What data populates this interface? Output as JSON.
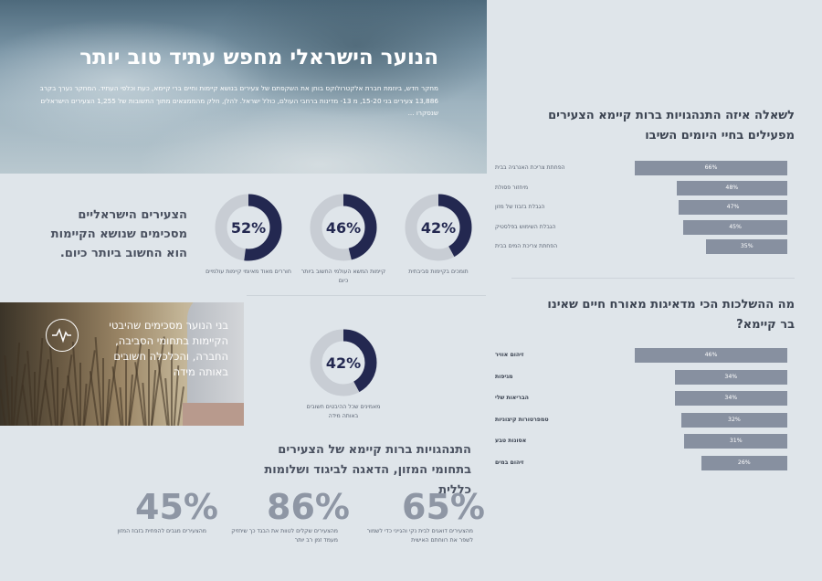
{
  "hero": {
    "title": "הנוער הישראלי מחפש עתיד טוב יותר",
    "body": "מחקר חדש, ביוזמת חברת אלקטרולוקס בוחן את השקפתם של צעירים בנושא קיימות וחיים ברי קיימא, כעת וכלפי העתיד. המחקר נערך בקרב 13,886 צעירים בני 15-20, מ 13- מדינות ברחבי העולם, כולל ישראל. להלן, חלק מהממצאים מתוך התשובות של 1,255 הצעירים הישראלים שנסקרו ..."
  },
  "habits": {
    "title": "לשאלה איזה התנהגויות ברות קיימא הצעירים מפעילים בחיי היומים השיבו",
    "bars": [
      {
        "label": "הפחתת צריכת האנרגיה בבית",
        "value": "66%",
        "pct": 66
      },
      {
        "label": "מיחזור פסולת",
        "value": "48%",
        "pct": 48
      },
      {
        "label": "הגבלת בזבוז של מזון",
        "value": "47%",
        "pct": 47
      },
      {
        "label": "הגבלת השימוש בפלסטיק",
        "value": "45%",
        "pct": 45
      },
      {
        "label": "הפחתת צריכת המים בבית",
        "value": "35%",
        "pct": 35
      }
    ]
  },
  "concerns": {
    "title": "מה ההשלכות הכי מדאיגות מאורח חיים שאינו בר קיימא?",
    "bars": [
      {
        "label": "זיהום אוויר",
        "value": "46%",
        "pct": 46
      },
      {
        "label": "מגיפות",
        "value": "34%",
        "pct": 34
      },
      {
        "label": "הבריאות שלי",
        "value": "34%",
        "pct": 34
      },
      {
        "label": "טמפרטורות קיצוניות",
        "value": "32%",
        "pct": 32
      },
      {
        "label": "אסונות טבע",
        "value": "31%",
        "pct": 31
      },
      {
        "label": "זיהום במים",
        "value": "26%",
        "pct": 26
      }
    ]
  },
  "agree": {
    "text": "הצעירים הישראליים מסכימים שנושא הקיימות הוא החשוב ביותר כיום.",
    "donuts": [
      {
        "value": "52%",
        "pct": 52,
        "caption": "חוררים מאוד מאיומי קיימות עולמיים"
      },
      {
        "value": "46%",
        "pct": 46,
        "caption": "קיימות המשא העולמי החשוב ביותר כיום"
      },
      {
        "value": "42%",
        "pct": 42,
        "caption": "תומכים בקיימות סביבתית"
      }
    ]
  },
  "photo": {
    "text": "בני הנוער מסכימים שהיבטי הקיימות בתחומי הסביבה, החברה, והכלכלה חשובים באותה מידה"
  },
  "balance": {
    "value": "42%",
    "pct": 42,
    "caption": "מאמינים שכל ההיבטים חשובים באותה מידה"
  },
  "food": {
    "title": "התנהגויות ברות קיימא של הצעירים בתחומי המזון, הדאגה לביגוד ושלומות כללית",
    "stats": [
      {
        "value": "45%",
        "caption": "מהצעירים מגבים להפחית בזבוז המזון"
      },
      {
        "value": "86%",
        "caption": "מהצעירים שקלים לטוות את הבגד כך שיחזיק מעמד זמן רב יותר"
      },
      {
        "value": "65%",
        "caption": "מהצעירים דואגים לבית נקי והגייני כדי לשמור לשפר את רווחתם האישית"
      }
    ]
  },
  "colors": {
    "donut_fill": "#232850",
    "donut_track": "#c8cdd4",
    "bar": "#8790a0"
  },
  "icons": {
    "photo_icon": "pulse-icon"
  }
}
